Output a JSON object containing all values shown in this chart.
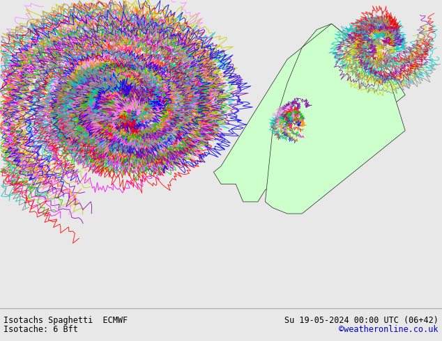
{
  "title_line1": "Isotachs Spaghetti  ECMWF",
  "title_line2": "Isotache: 6 Bft",
  "datetime_label": "Su 19-05-2024 00:00 UTC (06+42)",
  "credit": "©weatheronline.co.uk",
  "bg_color": "#e8e8e8",
  "land_color": "#ccffcc",
  "border_color": "#222222",
  "water_color": "#e0e0e0",
  "fig_width": 6.34,
  "fig_height": 4.9,
  "dpi": 100,
  "text_color_title": "#000000",
  "text_color_credit": "#0000cc",
  "footer_bg": "#d8d8d8",
  "spaghetti_colors": [
    "#888888",
    "#ff00ff",
    "#ff0000",
    "#ff8800",
    "#cccc00",
    "#00cc00",
    "#00cccc",
    "#0000ff",
    "#8800aa",
    "#ff88ff"
  ],
  "map_extent_lon": [
    -25,
    35
  ],
  "map_extent_lat": [
    47,
    73
  ]
}
